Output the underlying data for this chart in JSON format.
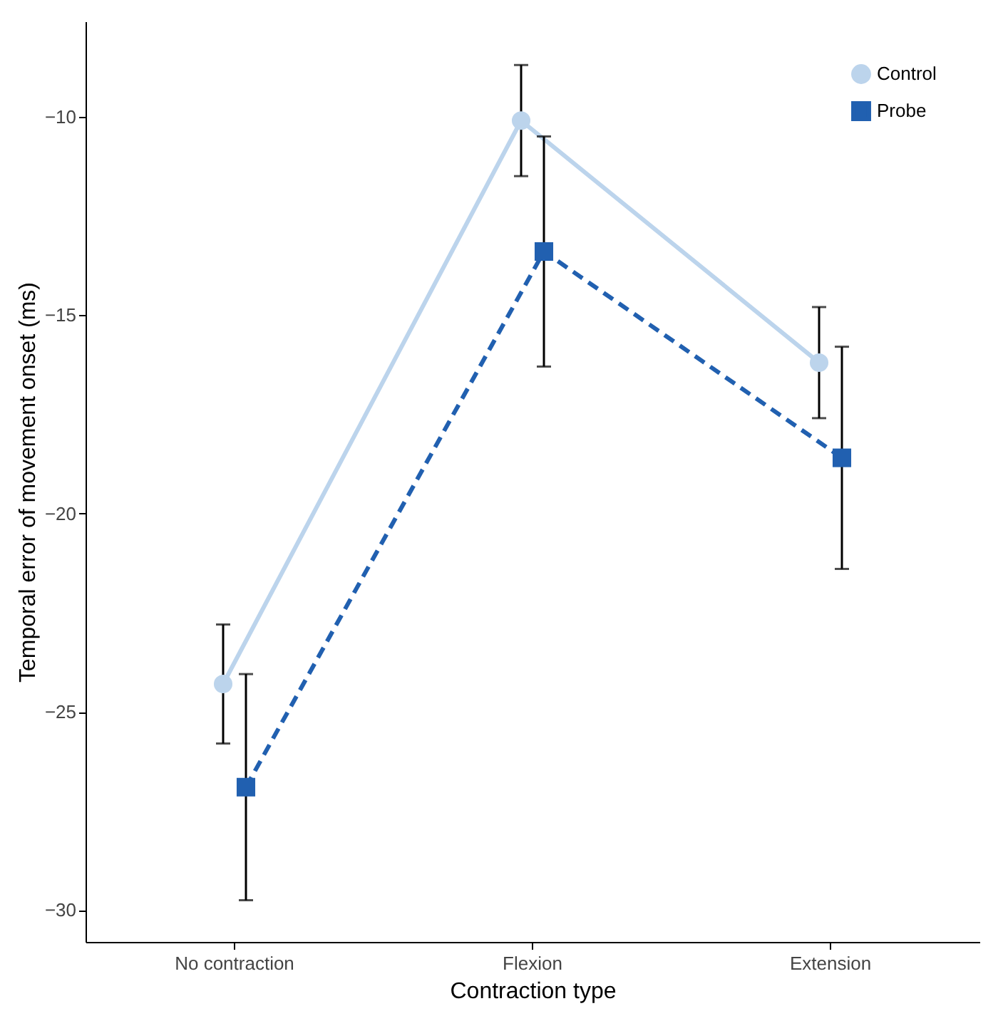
{
  "chart_data": {
    "type": "line",
    "xlabel": "Contraction type",
    "ylabel": "Temporal error of movement onset (ms)",
    "categories": [
      "No contraction",
      "Flexion",
      "Extension"
    ],
    "series": [
      {
        "name": "Control",
        "color": "#bcd4ec",
        "values": [
          -24.3,
          -10.1,
          -16.2
        ],
        "errors": [
          1.5,
          1.4,
          1.4
        ],
        "marker": "circle",
        "line_style": "solid"
      },
      {
        "name": "Probe",
        "color": "#2160b0",
        "values": [
          -26.9,
          -13.4,
          -18.6
        ],
        "errors": [
          2.85,
          2.9,
          2.8
        ],
        "marker": "square",
        "line_style": "dashed"
      }
    ],
    "ylim": [
      -30.8,
      -7.6
    ],
    "yticks": [
      -30,
      -25,
      -20,
      -15,
      -10
    ],
    "grid": false,
    "legend": "top right"
  }
}
